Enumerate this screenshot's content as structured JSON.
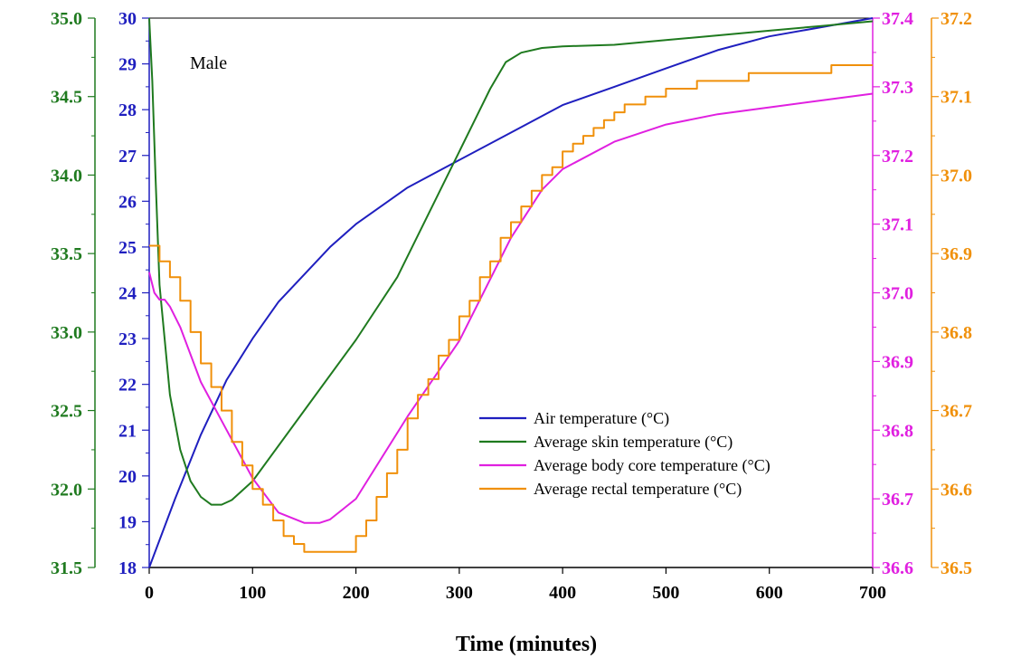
{
  "chart_data": {
    "type": "line",
    "xlabel": "Time (minutes)",
    "annotation": "Male",
    "xlim": [
      0,
      700
    ],
    "x_ticks": [
      0,
      100,
      200,
      300,
      400,
      500,
      600,
      700
    ],
    "x_tick_labels": [
      "0",
      "100",
      "200",
      "300",
      "400",
      "500",
      "600",
      "700"
    ],
    "axes": {
      "air": {
        "ylim": [
          18,
          30
        ],
        "ticks": [
          18,
          19,
          20,
          21,
          22,
          23,
          24,
          25,
          26,
          27,
          28,
          29,
          30
        ],
        "tick_labels": [
          "18",
          "19",
          "20",
          "21",
          "22",
          "23",
          "24",
          "25",
          "26",
          "27",
          "28",
          "29",
          "30"
        ],
        "color": "#1f1fbf"
      },
      "skin": {
        "ylim": [
          31.5,
          35.0
        ],
        "ticks": [
          31.5,
          32.0,
          32.5,
          33.0,
          33.5,
          34.0,
          34.5,
          35.0
        ],
        "tick_labels": [
          "31.5",
          "32.0",
          "32.5",
          "33.0",
          "33.5",
          "34.0",
          "34.5",
          "35.0"
        ],
        "color": "#1f7a1f"
      },
      "core": {
        "ylim": [
          36.6,
          37.4
        ],
        "ticks": [
          36.6,
          36.7,
          36.8,
          36.9,
          37.0,
          37.1,
          37.2,
          37.3,
          37.4
        ],
        "tick_labels": [
          "36.6",
          "36.7",
          "36.8",
          "36.9",
          "37.0",
          "37.1",
          "37.2",
          "37.3",
          "37.4"
        ],
        "color": "#e020e0"
      },
      "rectal": {
        "ylim": [
          36.5,
          37.2
        ],
        "ticks": [
          36.5,
          36.6,
          36.7,
          36.8,
          36.9,
          37.0,
          37.1,
          37.2
        ],
        "tick_labels": [
          "36.5",
          "36.6",
          "36.7",
          "36.8",
          "36.9",
          "37.0",
          "37.1",
          "37.2"
        ],
        "color": "#f0900a"
      }
    },
    "legend_position": "lower-right",
    "series": [
      {
        "name": "Air temperature (°C)",
        "axis": "air",
        "color": "#1f1fbf",
        "x": [
          0,
          25,
          50,
          75,
          100,
          125,
          150,
          175,
          200,
          250,
          300,
          350,
          400,
          450,
          500,
          550,
          600,
          650,
          700
        ],
        "y": [
          18.0,
          19.5,
          20.9,
          22.1,
          23.0,
          23.8,
          24.4,
          25.0,
          25.5,
          26.3,
          26.9,
          27.5,
          28.1,
          28.5,
          28.9,
          29.3,
          29.6,
          29.8,
          30.0
        ]
      },
      {
        "name": "Average skin temperature (°C)",
        "axis": "skin",
        "color": "#1f7a1f",
        "x": [
          0,
          3,
          6,
          10,
          20,
          30,
          40,
          50,
          60,
          70,
          80,
          100,
          150,
          200,
          240,
          270,
          300,
          330,
          345,
          360,
          380,
          400,
          450,
          500,
          550,
          600,
          650,
          700
        ],
        "y": [
          35.0,
          34.6,
          34.0,
          33.3,
          32.6,
          32.25,
          32.05,
          31.95,
          31.9,
          31.9,
          31.93,
          32.05,
          32.5,
          32.95,
          33.35,
          33.75,
          34.15,
          34.55,
          34.72,
          34.78,
          34.81,
          34.82,
          34.83,
          34.86,
          34.89,
          34.92,
          34.95,
          34.98
        ]
      },
      {
        "name": "Average body core temperature (°C)",
        "axis": "core",
        "color": "#e020e0",
        "x": [
          0,
          5,
          10,
          15,
          20,
          30,
          50,
          75,
          100,
          125,
          150,
          165,
          175,
          200,
          250,
          300,
          350,
          380,
          400,
          450,
          500,
          550,
          600,
          650,
          700
        ],
        "y": [
          37.03,
          37.0,
          36.99,
          36.99,
          36.98,
          36.95,
          36.87,
          36.8,
          36.73,
          36.68,
          36.665,
          36.665,
          36.67,
          36.7,
          36.82,
          36.93,
          37.08,
          37.15,
          37.18,
          37.22,
          37.245,
          37.26,
          37.27,
          37.28,
          37.29
        ]
      },
      {
        "name": "Average rectal temperature (°C)",
        "axis": "rectal",
        "color": "#f0900a",
        "x": [
          0,
          10,
          20,
          30,
          50,
          75,
          100,
          125,
          150,
          190,
          200,
          225,
          250,
          300,
          350,
          375,
          400,
          425,
          450,
          500,
          550,
          600,
          650,
          700
        ],
        "y": [
          36.91,
          36.89,
          36.87,
          36.84,
          36.76,
          36.68,
          36.6,
          36.55,
          36.52,
          36.52,
          36.54,
          36.6,
          36.69,
          36.82,
          36.94,
          36.99,
          37.03,
          37.06,
          37.08,
          37.11,
          37.12,
          37.13,
          37.135,
          37.14
        ]
      }
    ]
  }
}
